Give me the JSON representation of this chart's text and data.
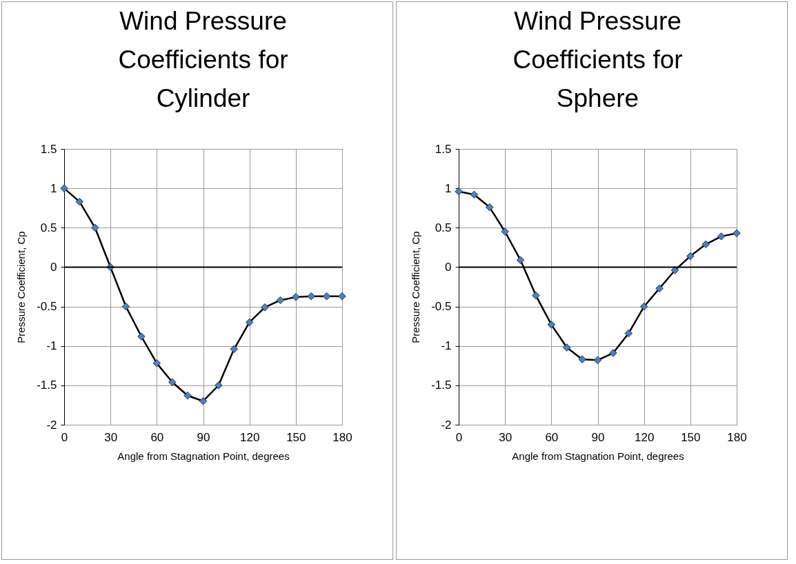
{
  "chart_data": [
    {
      "type": "line",
      "title": "Wind Pressure Coefficients for Cylinder",
      "xlabel": "Angle from Stagnation Point, degrees",
      "ylabel": "Pressure Coefficient, Cp",
      "x": [
        0,
        10,
        20,
        30,
        40,
        50,
        60,
        70,
        80,
        90,
        100,
        110,
        120,
        130,
        140,
        150,
        160,
        170,
        180
      ],
      "series": [
        {
          "color": "#4f81bd",
          "values": [
            1.0,
            0.83,
            0.5,
            0,
            -0.5,
            -0.88,
            -1.22,
            -1.46,
            -1.63,
            -1.7,
            -1.5,
            -1.04,
            -0.7,
            -0.51,
            -0.42,
            -0.38,
            -0.37,
            -0.37,
            -0.37
          ]
        }
      ],
      "xlim": [
        0,
        180
      ],
      "xticks": [
        0,
        30,
        60,
        90,
        120,
        150,
        180
      ],
      "ylim": [
        -2,
        1.5
      ],
      "yticks": [
        -2,
        -1.5,
        -1,
        -0.5,
        0,
        0.5,
        1,
        1.5
      ],
      "grid": true,
      "marker": "diamond",
      "line_style": "solid",
      "ref_lines": [
        {
          "axis": "y",
          "value": 0,
          "color": "#000000"
        }
      ]
    },
    {
      "type": "line",
      "title": "Wind Pressure Coefficients for Sphere",
      "xlabel": "Angle from Stagnation Point, degrees",
      "ylabel": "Pressure Coefficient, Cp",
      "x": [
        0,
        10,
        20,
        30,
        40,
        50,
        60,
        70,
        80,
        90,
        100,
        110,
        120,
        130,
        140,
        150,
        160,
        170,
        180
      ],
      "series": [
        {
          "color": "#4f81bd",
          "values": [
            0.96,
            0.92,
            0.76,
            0.45,
            0.09,
            -0.36,
            -0.73,
            -1.02,
            -1.17,
            -1.18,
            -1.09,
            -0.84,
            -0.5,
            -0.27,
            -0.04,
            0.14,
            0.29,
            0.39,
            0.43
          ]
        }
      ],
      "xlim": [
        0,
        180
      ],
      "xticks": [
        0,
        30,
        60,
        90,
        120,
        150,
        180
      ],
      "ylim": [
        -2,
        1.5
      ],
      "yticks": [
        -2,
        -1.5,
        -1,
        -0.5,
        0,
        0.5,
        1,
        1.5
      ],
      "grid": true,
      "marker": "diamond",
      "line_style": "solid",
      "ref_lines": [
        {
          "axis": "y",
          "value": 0,
          "color": "#000000"
        }
      ]
    }
  ]
}
